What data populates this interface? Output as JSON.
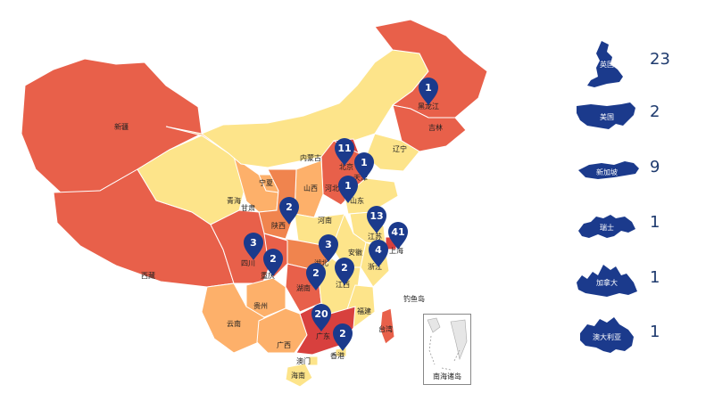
{
  "colors": {
    "low": "#fde48a",
    "mid": "#fdb06a",
    "high": "#f0844e",
    "higher": "#e8604a",
    "top": "#d8403e",
    "pin": "#1b3a8c",
    "border": "#ffffff"
  },
  "provinces": [
    {
      "name": "新疆",
      "level": "higher"
    },
    {
      "name": "西藏",
      "level": "higher"
    },
    {
      "name": "青海",
      "level": "low"
    },
    {
      "name": "甘肃",
      "level": "mid"
    },
    {
      "name": "内蒙古",
      "level": "low"
    },
    {
      "name": "黑龙江",
      "level": "higher"
    },
    {
      "name": "吉林",
      "level": "higher"
    },
    {
      "name": "辽宁",
      "level": "low"
    },
    {
      "name": "北京",
      "level": "top"
    },
    {
      "name": "天津",
      "level": "low"
    },
    {
      "name": "河北",
      "level": "higher"
    },
    {
      "name": "山西",
      "level": "mid"
    },
    {
      "name": "山东",
      "level": "low"
    },
    {
      "name": "宁夏",
      "level": "mid"
    },
    {
      "name": "陕西",
      "level": "high"
    },
    {
      "name": "河南",
      "level": "low"
    },
    {
      "name": "江苏",
      "level": "low"
    },
    {
      "name": "上海",
      "level": "top"
    },
    {
      "name": "安徽",
      "level": "low"
    },
    {
      "name": "湖北",
      "level": "high"
    },
    {
      "name": "浙江",
      "level": "low"
    },
    {
      "name": "四川",
      "level": "higher"
    },
    {
      "name": "重庆",
      "level": "higher"
    },
    {
      "name": "湖南",
      "level": "higher"
    },
    {
      "name": "江西",
      "level": "low"
    },
    {
      "name": "福建",
      "level": "low"
    },
    {
      "name": "贵州",
      "level": "mid"
    },
    {
      "name": "云南",
      "level": "mid"
    },
    {
      "name": "广西",
      "level": "mid"
    },
    {
      "name": "广东",
      "level": "top"
    },
    {
      "name": "台湾",
      "level": "higher"
    },
    {
      "name": "香港",
      "level": "low"
    },
    {
      "name": "澳门",
      "level": "low"
    },
    {
      "name": "海南",
      "level": "low"
    }
  ],
  "markers": [
    {
      "province": "黑龙江",
      "value": "1"
    },
    {
      "province": "北京",
      "value": "11"
    },
    {
      "province": "天津",
      "value": "1"
    },
    {
      "province": "山东",
      "value": "1"
    },
    {
      "province": "陕西",
      "value": "2"
    },
    {
      "province": "江苏",
      "value": "13"
    },
    {
      "province": "上海",
      "value": "41"
    },
    {
      "province": "四川",
      "value": "3"
    },
    {
      "province": "湖北",
      "value": "3"
    },
    {
      "province": "重庆",
      "value": "2"
    },
    {
      "province": "江西",
      "value": "2"
    },
    {
      "province": "浙江",
      "value": "4"
    },
    {
      "province": "湖南",
      "value": "2"
    },
    {
      "province": "广东",
      "value": "20"
    },
    {
      "province": "香港",
      "value": "2"
    }
  ],
  "inset": {
    "label": "南海诸岛"
  },
  "islands": {
    "label": "钓鱼岛"
  },
  "legend": [
    {
      "name": "英国",
      "count": "23",
      "icon": "uk-silhouette-icon"
    },
    {
      "name": "美国",
      "count": "2",
      "icon": "usa-silhouette-icon"
    },
    {
      "name": "新加坡",
      "count": "9",
      "icon": "singapore-silhouette-icon"
    },
    {
      "name": "瑞士",
      "count": "1",
      "icon": "switzerland-silhouette-icon"
    },
    {
      "name": "加拿大",
      "count": "1",
      "icon": "canada-silhouette-icon"
    },
    {
      "name": "澳大利亚",
      "count": "1",
      "icon": "australia-silhouette-icon"
    }
  ]
}
